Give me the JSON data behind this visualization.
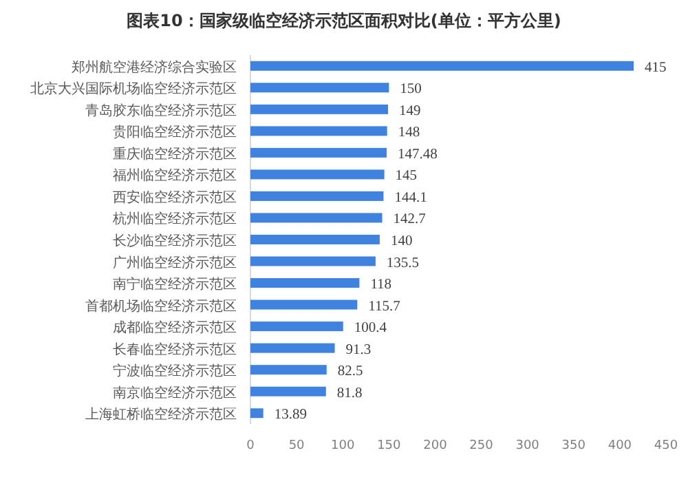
{
  "chart_data": {
    "type": "bar",
    "orientation": "horizontal",
    "title": "图表10：国家级临空经济示范区面积对比(单位：平方公里)",
    "categories": [
      "郑州航空港经济综合实验区",
      "北京大兴国际机场临空经济示范区",
      "青岛胶东临空经济示范区",
      "贵阳临空经济示范区",
      "重庆临空经济示范区",
      "福州临空经济示范区",
      "西安临空经济示范区",
      "杭州临空经济示范区",
      "长沙临空经济示范区",
      "广州临空经济示范区",
      "南宁临空经济示范区",
      "首都机场临空经济示范区",
      "成都临空经济示范区",
      "长春临空经济示范区",
      "宁波临空经济示范区",
      "南京临空经济示范区",
      "上海虹桥临空经济示范区"
    ],
    "values": [
      415,
      150,
      149,
      148,
      147.48,
      145,
      144.1,
      142.7,
      140,
      135.5,
      118,
      115.7,
      100.4,
      91.3,
      82.5,
      81.8,
      13.89
    ],
    "color": "#3f82e0",
    "xlim": [
      0,
      450
    ],
    "xticks": [
      0,
      50,
      100,
      150,
      200,
      250,
      300,
      350,
      400,
      450
    ],
    "data_labels": true,
    "grid": false
  }
}
